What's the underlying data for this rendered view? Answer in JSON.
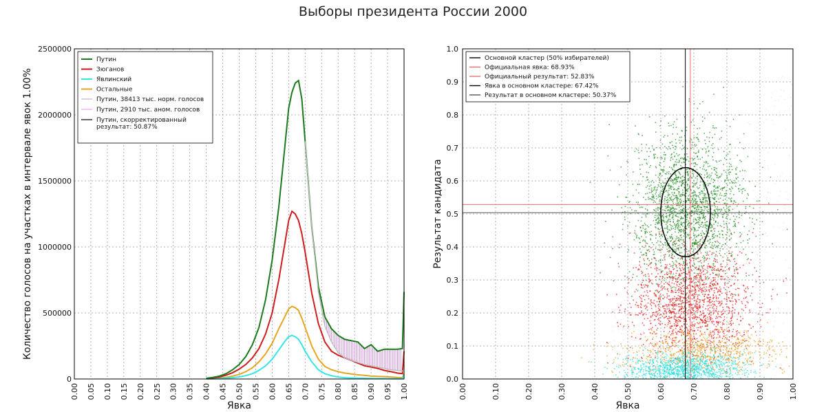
{
  "suptitle": "Выборы президента России 2000",
  "chart_data": [
    {
      "type": "line",
      "xlabel": "Явка",
      "ylabel": "Количество голосов на участках в интервале явок 1.00%",
      "xlim": [
        0,
        1
      ],
      "ylim": [
        0,
        2500000
      ],
      "x_ticks": [
        "0.00",
        "0.05",
        "0.10",
        "0.15",
        "0.20",
        "0.25",
        "0.30",
        "0.35",
        "0.40",
        "0.45",
        "0.50",
        "0.55",
        "0.60",
        "0.65",
        "0.70",
        "0.75",
        "0.80",
        "0.85",
        "0.90",
        "0.95",
        "1.00"
      ],
      "y_ticks": [
        "0",
        "500000",
        "1000000",
        "1500000",
        "2000000",
        "2500000"
      ],
      "grid": true,
      "legend_position": "top-left",
      "x": [
        0.4,
        0.42,
        0.44,
        0.46,
        0.48,
        0.5,
        0.52,
        0.54,
        0.56,
        0.58,
        0.6,
        0.62,
        0.64,
        0.65,
        0.66,
        0.67,
        0.68,
        0.69,
        0.7,
        0.72,
        0.74,
        0.76,
        0.78,
        0.8,
        0.82,
        0.84,
        0.86,
        0.88,
        0.9,
        0.92,
        0.94,
        0.96,
        0.98,
        0.995,
        1.0
      ],
      "series": [
        {
          "name": "Путин",
          "color": "#1a7a1a",
          "values": [
            5000,
            12000,
            22000,
            40000,
            70000,
            110000,
            170000,
            260000,
            390000,
            600000,
            900000,
            1300000,
            1800000,
            2050000,
            2170000,
            2240000,
            2260000,
            2120000,
            1800000,
            1150000,
            700000,
            470000,
            380000,
            330000,
            300000,
            290000,
            280000,
            230000,
            260000,
            210000,
            225000,
            225000,
            225000,
            230000,
            660000
          ]
        },
        {
          "name": "Зюганов",
          "color": "#d11a1a",
          "values": [
            3000,
            8000,
            15000,
            28000,
            48000,
            75000,
            110000,
            160000,
            230000,
            340000,
            500000,
            750000,
            1050000,
            1200000,
            1270000,
            1250000,
            1200000,
            1100000,
            960000,
            650000,
            420000,
            280000,
            210000,
            180000,
            160000,
            140000,
            120000,
            100000,
            90000,
            80000,
            65000,
            55000,
            45000,
            40000,
            210000
          ]
        },
        {
          "name": "Явлинский",
          "color": "#33e6e6",
          "values": [
            500,
            1500,
            3000,
            6000,
            10000,
            16000,
            25000,
            40000,
            65000,
            100000,
            150000,
            220000,
            290000,
            320000,
            330000,
            320000,
            300000,
            260000,
            210000,
            130000,
            70000,
            40000,
            25000,
            15000,
            10000,
            8000,
            6000,
            5000,
            4000,
            3000,
            3000,
            2000,
            2000,
            2000,
            30000
          ]
        },
        {
          "name": "Остальные",
          "color": "#e6a51f",
          "values": [
            1000,
            3000,
            6000,
            12000,
            22000,
            35000,
            55000,
            85000,
            130000,
            190000,
            270000,
            380000,
            480000,
            530000,
            550000,
            540000,
            520000,
            460000,
            390000,
            250000,
            150000,
            95000,
            70000,
            55000,
            45000,
            38000,
            32000,
            27000,
            22000,
            20000,
            18000,
            15000,
            12000,
            10000,
            40000
          ]
        }
      ],
      "legend_extra": [
        {
          "name": "Путин, 38413 тыс. норм. голосов",
          "color": "#bbbbbb"
        },
        {
          "name": "Путин, 2910 тыс. аном. голосов",
          "color": "#e2a6e8"
        },
        {
          "name": "Путин, скорректированный результат: 50.87%",
          "color": "#000000"
        }
      ],
      "corrected_putin": {
        "x": [
          0.7,
          0.72,
          0.74,
          0.76,
          0.78,
          0.8,
          0.82,
          0.84,
          0.86,
          0.88,
          0.9,
          0.92,
          0.94,
          0.96,
          0.98,
          1.0
        ],
        "values": [
          1800000,
          1150000,
          660000,
          400000,
          280000,
          200000,
          160000,
          140000,
          125000,
          110000,
          100000,
          90000,
          80000,
          70000,
          65000,
          60000
        ]
      }
    },
    {
      "type": "scatter",
      "xlabel": "Явка",
      "ylabel": "Результат кандидата",
      "xlim": [
        0,
        1
      ],
      "ylim": [
        0,
        1
      ],
      "x_ticks": [
        "0.00",
        "0.10",
        "0.20",
        "0.30",
        "0.40",
        "0.50",
        "0.60",
        "0.70",
        "0.80",
        "0.90",
        "1.00"
      ],
      "y_ticks": [
        "0.0",
        "0.1",
        "0.2",
        "0.3",
        "0.4",
        "0.5",
        "0.6",
        "0.7",
        "0.8",
        "0.9",
        "1.0"
      ],
      "grid": true,
      "legend_position": "top-left",
      "legend": [
        {
          "name": "Основной кластер (50% избирателей)",
          "color": "#000000"
        },
        {
          "name": "Официальная явка: 68.93%",
          "color": "#e07070"
        },
        {
          "name": "Официальный результат: 52.83%",
          "color": "#e07070"
        },
        {
          "name": "Явка в основном кластере: 67.42%",
          "color": "#000000"
        },
        {
          "name": "Результат в основном кластере: 50.37%",
          "color": "#555555"
        }
      ],
      "official_turnout": 0.6893,
      "official_result": 0.5283,
      "cluster_turnout": 0.6742,
      "cluster_result": 0.5037,
      "cluster_ellipse": {
        "cx": 0.675,
        "cy": 0.505,
        "rx": 0.075,
        "ry": 0.135
      },
      "clouds": [
        {
          "color": "#1c8a1c",
          "mx": 0.68,
          "my": 0.52,
          "sx": 0.085,
          "sy": 0.11,
          "n": 2200
        },
        {
          "color": "#e01414",
          "mx": 0.69,
          "my": 0.23,
          "sx": 0.09,
          "sy": 0.08,
          "n": 1600
        },
        {
          "color": "#e8a020",
          "mx": 0.72,
          "my": 0.085,
          "sx": 0.12,
          "sy": 0.035,
          "n": 800
        },
        {
          "color": "#22e0e0",
          "mx": 0.68,
          "my": 0.03,
          "sx": 0.09,
          "sy": 0.025,
          "n": 1200
        }
      ]
    }
  ]
}
